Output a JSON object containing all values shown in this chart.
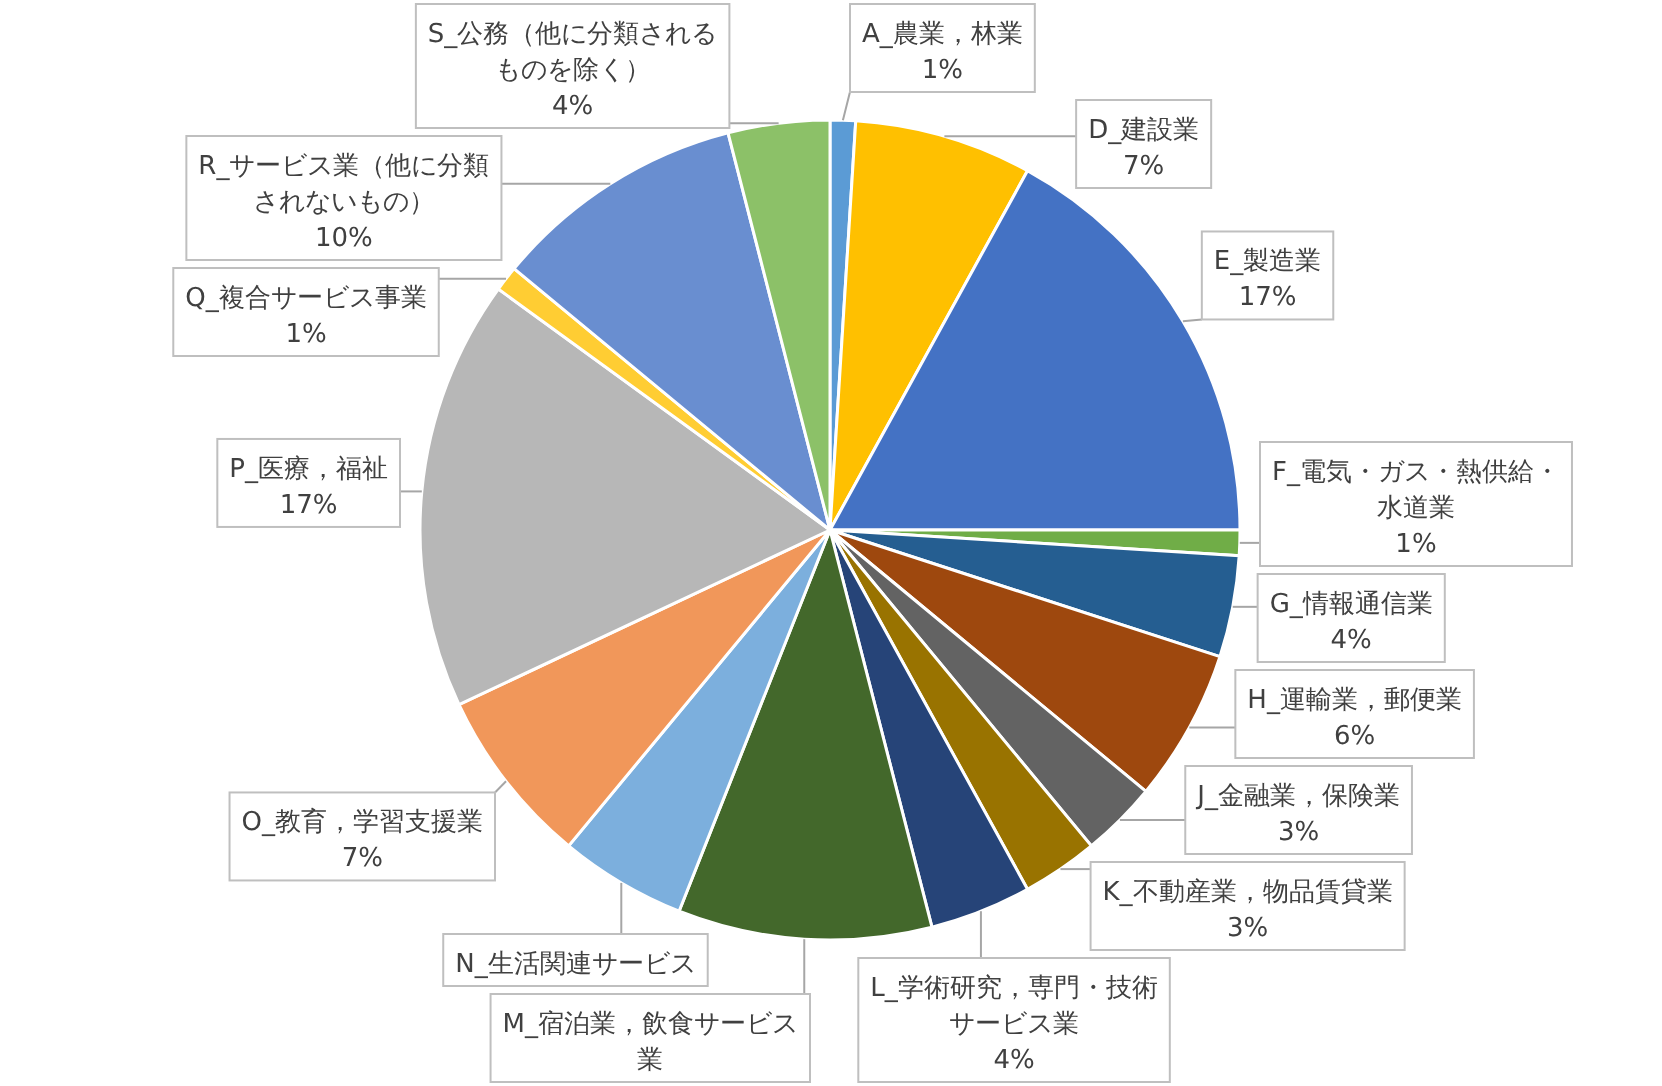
{
  "chart_data": {
    "type": "pie",
    "categories": [
      "A_農業，林業",
      "D_建設業",
      "E_製造業",
      "F_電気・ガス・熱供給・水道業",
      "G_情報通信業",
      "H_運輸業，郵便業",
      "J_金融業，保険業",
      "K_不動産業，物品賃貸業",
      "L_学術研究，専門・技術サービス業",
      "M_宿泊業，飲食サービス業",
      "N_生活関連サービス",
      "O_教育，学習支援業",
      "P_医療，福祉",
      "Q_複合サービス事業",
      "R_サービス業（他に分類されないもの）",
      "S_公務（他に分類されるものを除く）"
    ],
    "values": [
      1,
      7,
      17,
      1,
      4,
      6,
      3,
      3,
      4,
      10,
      5,
      7,
      17,
      1,
      10,
      4
    ],
    "value_labels": [
      "1%",
      "7%",
      "17%",
      "1%",
      "4%",
      "6%",
      "3%",
      "3%",
      "4%",
      null,
      null,
      "7%",
      "17%",
      "1%",
      "10%",
      "4%"
    ],
    "colors": [
      "#5b9bd5",
      "#ffc000",
      "#4472c4",
      "#70ad47",
      "#255e91",
      "#9e480e",
      "#636363",
      "#997300",
      "#264478",
      "#43682b",
      "#7cafdd",
      "#f1975a",
      "#b7b7b7",
      "#ffcd33",
      "#698ed0",
      "#8cc168"
    ]
  }
}
